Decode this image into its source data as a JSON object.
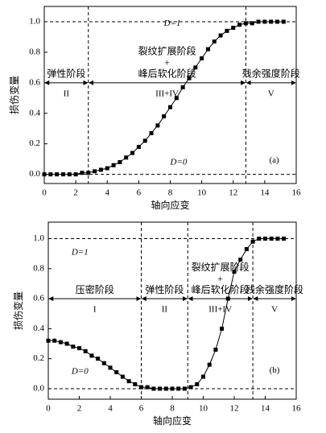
{
  "chart_data": [
    {
      "type": "line",
      "label": "(a)",
      "xlabel": "轴向应变",
      "ylabel": "损伤变量",
      "xlim": [
        0,
        16
      ],
      "ylim": [
        -0.06,
        1.1
      ],
      "xticks": [
        0,
        2,
        4,
        6,
        8,
        10,
        12,
        14,
        16
      ],
      "yticks": [
        {
          "value": 0,
          "label": "0.0"
        },
        0.2,
        0.4,
        0.6,
        0.8,
        {
          "value": 1,
          "label": "1.0"
        }
      ],
      "x": [
        0,
        0.4,
        0.8,
        1.2,
        1.6,
        2.0,
        2.4,
        2.8,
        3.2,
        3.6,
        4.0,
        4.4,
        4.8,
        5.2,
        5.6,
        6.0,
        6.4,
        6.8,
        7.2,
        7.6,
        8.0,
        8.4,
        8.8,
        9.2,
        9.6,
        10.0,
        10.4,
        10.8,
        11.2,
        11.6,
        12.0,
        12.4,
        12.8,
        13.2,
        13.6,
        14.0,
        14.4,
        14.8,
        15.2
      ],
      "series": [
        {
          "color": "#000000",
          "values": [
            0,
            0,
            0,
            0,
            0,
            0,
            0.01,
            0.01,
            0.02,
            0.03,
            0.04,
            0.06,
            0.08,
            0.11,
            0.14,
            0.18,
            0.22,
            0.27,
            0.32,
            0.38,
            0.44,
            0.5,
            0.57,
            0.63,
            0.7,
            0.76,
            0.82,
            0.87,
            0.91,
            0.94,
            0.96,
            0.98,
            0.99,
            0.99,
            1,
            1,
            1,
            1,
            1
          ]
        }
      ],
      "hlines": [
        {
          "value": 1,
          "label": "D=1"
        },
        {
          "value": 0,
          "label": "D=0"
        }
      ],
      "vlines": [
        2.8,
        12.8
      ],
      "stage_arrow_y": 0.6,
      "stages": [
        {
          "lines": [
            "弹性阶段"
          ],
          "numeral": "II"
        },
        {
          "lines": [
            "裂纹扩展阶段",
            "+",
            "峰后软化阶段"
          ],
          "numeral": "III+IV"
        },
        {
          "lines": [
            "残余强度阶段"
          ],
          "numeral": "V"
        }
      ]
    },
    {
      "type": "line",
      "label": "(b)",
      "xlabel": "轴向应变",
      "ylabel": "损伤变量",
      "xlim": [
        0,
        16
      ],
      "ylim": [
        -0.07,
        1.11
      ],
      "xticks": [
        0,
        2,
        4,
        6,
        8,
        10,
        12,
        14,
        16
      ],
      "yticks": [
        {
          "value": 0,
          "label": "0.0"
        },
        0.2,
        0.4,
        0.6,
        0.8,
        {
          "value": 1,
          "label": "1.0"
        }
      ],
      "x": [
        0,
        0.4,
        0.8,
        1.2,
        1.6,
        2.0,
        2.4,
        2.8,
        3.2,
        3.6,
        4.0,
        4.4,
        4.8,
        5.2,
        5.6,
        6.0,
        6.4,
        6.8,
        7.2,
        7.6,
        8.0,
        8.4,
        8.8,
        9.2,
        9.6,
        10.0,
        10.4,
        10.8,
        11.2,
        11.6,
        12.0,
        12.4,
        12.8,
        13.2,
        13.6,
        14.0,
        14.4,
        14.8,
        15.2
      ],
      "series": [
        {
          "color": "#000000",
          "values": [
            0.32,
            0.32,
            0.31,
            0.3,
            0.28,
            0.27,
            0.25,
            0.22,
            0.2,
            0.17,
            0.14,
            0.11,
            0.08,
            0.05,
            0.03,
            0.01,
            0.01,
            0,
            0,
            0,
            0,
            0,
            0,
            0.01,
            0.03,
            0.08,
            0.16,
            0.26,
            0.4,
            0.6,
            0.78,
            0.86,
            0.93,
            0.98,
            1,
            1,
            1,
            1,
            1
          ]
        }
      ],
      "hlines": [
        {
          "value": 1,
          "label": "D=1"
        },
        {
          "value": 0,
          "label": "D=0"
        }
      ],
      "vlines": [
        6,
        9,
        13.2
      ],
      "stage_arrow_y": 0.6,
      "stages": [
        {
          "lines": [
            "压密阶段"
          ],
          "numeral": "I"
        },
        {
          "lines": [
            "弹性阶段"
          ],
          "numeral": "II"
        },
        {
          "lines": [
            "裂纹扩展阶段",
            "+",
            "峰后软化阶段"
          ],
          "numeral": "III+IV"
        },
        {
          "lines": [
            "残余强度阶段"
          ],
          "numeral": "V"
        }
      ]
    }
  ]
}
